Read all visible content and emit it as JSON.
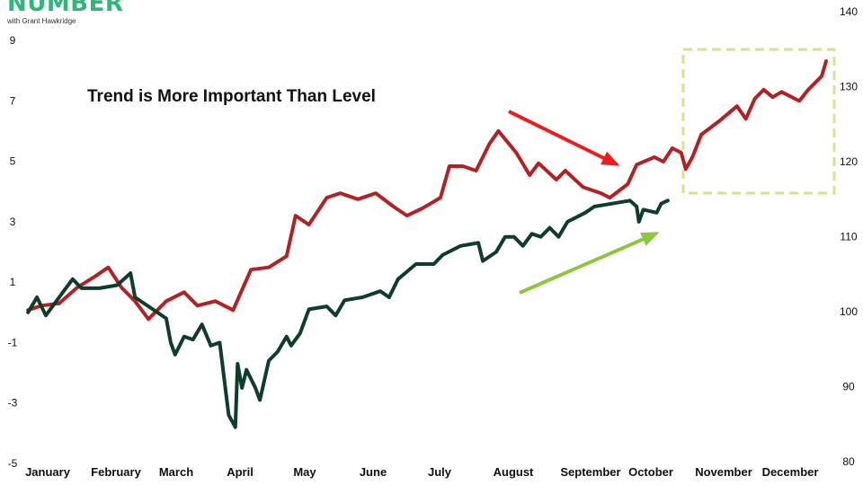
{
  "logo": {
    "name": "NUMBER",
    "subtitle": "with Grant Hawkridge"
  },
  "chart_data": {
    "type": "line",
    "title": "Trend is More Important Than Level",
    "x_categories": [
      "January",
      "February",
      "March",
      "April",
      "May",
      "June",
      "July",
      "August",
      "September",
      "October",
      "November",
      "December"
    ],
    "y_left": {
      "ticks": [
        9,
        7,
        5,
        3,
        1,
        -1,
        -3,
        -5
      ],
      "range": [
        -5,
        9
      ]
    },
    "y_right": {
      "ticks": [
        140,
        130,
        120,
        110,
        100,
        90,
        80
      ],
      "range": [
        80,
        140
      ]
    },
    "grid": false,
    "series": [
      {
        "axis": "right",
        "color": "#b22222",
        "points": [
          [
            "01-07",
            100.2
          ],
          [
            "01-13",
            100.8
          ],
          [
            "01-21",
            101.1
          ],
          [
            "01-29",
            103.2
          ],
          [
            "02-06",
            104.7
          ],
          [
            "02-12",
            105.9
          ],
          [
            "02-18",
            103.2
          ],
          [
            "02-24",
            101.4
          ],
          [
            "03-02",
            99.0
          ],
          [
            "03-10",
            101.4
          ],
          [
            "03-18",
            102.6
          ],
          [
            "03-24",
            100.8
          ],
          [
            "04-01",
            101.4
          ],
          [
            "04-09",
            100.2
          ],
          [
            "04-17",
            105.6
          ],
          [
            "04-25",
            105.9
          ],
          [
            "05-03",
            107.4
          ],
          [
            "05-07",
            112.8
          ],
          [
            "05-13",
            111.6
          ],
          [
            "05-21",
            115.2
          ],
          [
            "05-27",
            115.8
          ],
          [
            "06-04",
            115.0
          ],
          [
            "06-12",
            115.8
          ],
          [
            "06-20",
            114.0
          ],
          [
            "06-26",
            112.8
          ],
          [
            "07-03",
            113.8
          ],
          [
            "07-11",
            115.2
          ],
          [
            "07-15",
            119.4
          ],
          [
            "07-21",
            119.4
          ],
          [
            "07-27",
            118.8
          ],
          [
            "08-02",
            122.4
          ],
          [
            "08-06",
            124.1
          ],
          [
            "08-14",
            121.2
          ],
          [
            "08-20",
            118.2
          ],
          [
            "08-24",
            119.8
          ],
          [
            "09-01",
            117.6
          ],
          [
            "09-05",
            118.8
          ],
          [
            "09-13",
            116.6
          ],
          [
            "09-21",
            115.8
          ],
          [
            "09-25",
            115.2
          ],
          [
            "10-03",
            117.0
          ],
          [
            "10-07",
            119.6
          ],
          [
            "10-15",
            120.6
          ],
          [
            "10-19",
            120.0
          ],
          [
            "10-23",
            121.8
          ],
          [
            "10-27",
            121.2
          ],
          [
            "10-29",
            119.0
          ],
          [
            "11-01",
            120.6
          ],
          [
            "11-05",
            123.6
          ],
          [
            "11-13",
            125.4
          ],
          [
            "11-21",
            127.4
          ],
          [
            "11-25",
            125.7
          ],
          [
            "11-29",
            128.4
          ],
          [
            "12-03",
            129.6
          ],
          [
            "12-07",
            128.6
          ],
          [
            "12-11",
            129.3
          ],
          [
            "12-19",
            128.1
          ],
          [
            "12-23",
            129.6
          ],
          [
            "12-29",
            131.4
          ],
          [
            "12-31",
            133.4
          ]
        ]
      },
      {
        "axis": "left",
        "color": "#0f3d2a",
        "points": [
          [
            "01-07",
            0.0
          ],
          [
            "01-11",
            0.5
          ],
          [
            "01-15",
            -0.1
          ],
          [
            "01-23",
            0.7
          ],
          [
            "01-27",
            1.1
          ],
          [
            "01-31",
            0.8
          ],
          [
            "02-08",
            0.8
          ],
          [
            "02-16",
            0.9
          ],
          [
            "02-22",
            1.3
          ],
          [
            "02-24",
            0.5
          ],
          [
            "03-04",
            0.1
          ],
          [
            "03-10",
            -0.2
          ],
          [
            "03-12",
            -1.0
          ],
          [
            "03-14",
            -1.4
          ],
          [
            "03-18",
            -0.8
          ],
          [
            "03-22",
            -0.9
          ],
          [
            "03-26",
            -0.4
          ],
          [
            "03-30",
            -1.1
          ],
          [
            "04-03",
            -1.0
          ],
          [
            "04-07",
            -3.4
          ],
          [
            "04-10",
            -3.8
          ],
          [
            "04-11",
            -1.7
          ],
          [
            "04-13",
            -2.5
          ],
          [
            "04-15",
            -1.9
          ],
          [
            "04-19",
            -2.5
          ],
          [
            "04-21",
            -2.9
          ],
          [
            "04-25",
            -1.6
          ],
          [
            "04-29",
            -1.3
          ],
          [
            "05-03",
            -0.8
          ],
          [
            "05-05",
            -1.1
          ],
          [
            "05-09",
            -0.7
          ],
          [
            "05-13",
            0.1
          ],
          [
            "05-21",
            0.2
          ],
          [
            "05-25",
            -0.1
          ],
          [
            "05-29",
            0.4
          ],
          [
            "06-06",
            0.5
          ],
          [
            "06-14",
            0.7
          ],
          [
            "06-18",
            0.5
          ],
          [
            "06-22",
            1.1
          ],
          [
            "06-30",
            1.6
          ],
          [
            "07-08",
            1.6
          ],
          [
            "07-12",
            1.9
          ],
          [
            "07-20",
            2.2
          ],
          [
            "07-28",
            2.3
          ],
          [
            "07-30",
            1.7
          ],
          [
            "08-05",
            2.0
          ],
          [
            "08-09",
            2.5
          ],
          [
            "08-13",
            2.5
          ],
          [
            "08-17",
            2.2
          ],
          [
            "08-21",
            2.6
          ],
          [
            "08-25",
            2.5
          ],
          [
            "08-29",
            2.8
          ],
          [
            "09-02",
            2.5
          ],
          [
            "09-06",
            3.0
          ],
          [
            "09-14",
            3.3
          ],
          [
            "09-18",
            3.5
          ],
          [
            "09-26",
            3.6
          ],
          [
            "10-04",
            3.7
          ],
          [
            "10-07",
            3.5
          ],
          [
            "10-08",
            3.0
          ],
          [
            "10-10",
            3.4
          ],
          [
            "10-16",
            3.3
          ],
          [
            "10-18",
            3.6
          ],
          [
            "10-21",
            3.7
          ]
        ]
      }
    ],
    "annotations": {
      "red_arrow_color": "#ee1c1c",
      "green_arrow_color": "#8dc63f",
      "box_color": "#d4e48a"
    }
  }
}
